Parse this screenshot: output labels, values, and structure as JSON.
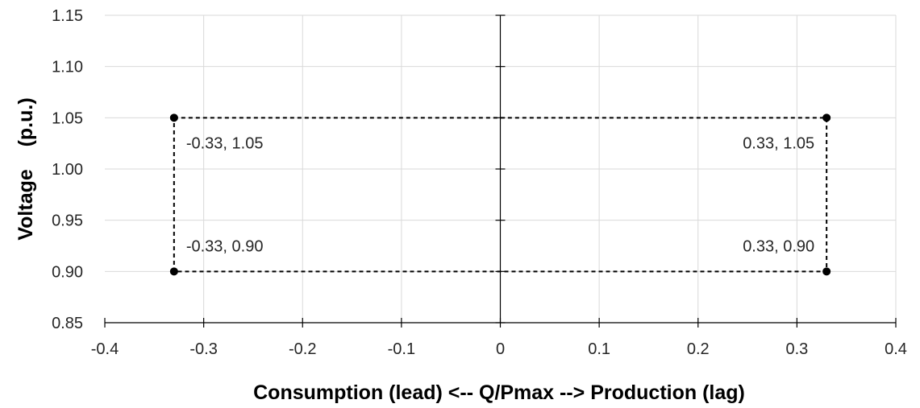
{
  "chart_data": {
    "type": "scatter",
    "title": "",
    "xlabel": "Consumption (lead) <-- Q/Pmax --> Production (lag)",
    "ylabel": "Voltage    (p.u.)",
    "xlim": [
      -0.4,
      0.4
    ],
    "ylim": [
      0.85,
      1.15
    ],
    "x_ticks": [
      -0.4,
      -0.3,
      -0.2,
      -0.1,
      0,
      0.1,
      0.2,
      0.3,
      0.4
    ],
    "x_tick_labels": [
      "-0.4",
      "-0.3",
      "-0.2",
      "-0.1",
      "0",
      "0.1",
      "0.2",
      "0.3",
      "0.4"
    ],
    "y_ticks": [
      0.85,
      0.9,
      0.95,
      1.0,
      1.05,
      1.1,
      1.15
    ],
    "y_tick_labels": [
      "0.85",
      "0.90",
      "0.95",
      "1.00",
      "1.05",
      "1.10",
      "1.15"
    ],
    "grid": true,
    "legend": "none",
    "series": [
      {
        "line_style": "dashed",
        "color": "#000000",
        "points": [
          {
            "x": -0.33,
            "y": 1.05,
            "label": "-0.33, 1.05",
            "label_side": "right"
          },
          {
            "x": 0.33,
            "y": 1.05,
            "label": "0.33, 1.05",
            "label_side": "left"
          },
          {
            "x": 0.33,
            "y": 0.9,
            "label": "0.33, 0.90",
            "label_side": "left"
          },
          {
            "x": -0.33,
            "y": 0.9,
            "label": "-0.33, 0.90",
            "label_side": "right"
          }
        ]
      }
    ]
  }
}
